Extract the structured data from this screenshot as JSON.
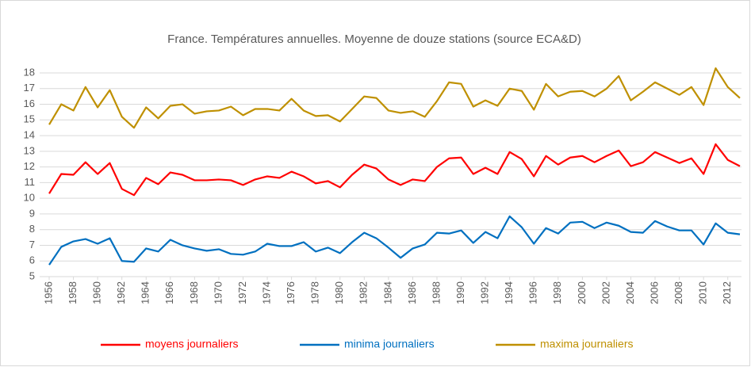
{
  "chart_data": {
    "type": "line",
    "title": "France. Températures annuelles. Moyenne de douze stations (source ECA&D)",
    "x": [
      1956,
      1957,
      1958,
      1959,
      1960,
      1961,
      1962,
      1963,
      1964,
      1965,
      1966,
      1967,
      1968,
      1969,
      1970,
      1971,
      1972,
      1973,
      1974,
      1975,
      1976,
      1977,
      1978,
      1979,
      1980,
      1981,
      1982,
      1983,
      1984,
      1985,
      1986,
      1987,
      1988,
      1989,
      1990,
      1991,
      1992,
      1993,
      1994,
      1995,
      1996,
      1997,
      1998,
      1999,
      2000,
      2001,
      2002,
      2003,
      2004,
      2005,
      2006,
      2007,
      2008,
      2009,
      2010,
      2011,
      2012,
      2013
    ],
    "xlim": [
      1956,
      2013
    ],
    "xticks": [
      1956,
      1958,
      1960,
      1962,
      1964,
      1966,
      1968,
      1970,
      1972,
      1974,
      1976,
      1978,
      1980,
      1982,
      1984,
      1986,
      1988,
      1990,
      1992,
      1994,
      1996,
      1998,
      2000,
      2002,
      2004,
      2006,
      2008,
      2010,
      2012
    ],
    "ylim": [
      5,
      18
    ],
    "yticks": [
      5,
      6,
      7,
      8,
      9,
      10,
      11,
      12,
      13,
      14,
      15,
      16,
      17,
      18
    ],
    "grid": true,
    "legend": "bottom",
    "series": [
      {
        "name": "moyens journaliers",
        "color": "#ff0000",
        "values": [
          10.3,
          11.55,
          11.5,
          12.3,
          11.55,
          12.25,
          10.6,
          10.2,
          11.3,
          10.9,
          11.65,
          11.5,
          11.15,
          11.15,
          11.2,
          11.15,
          10.85,
          11.2,
          11.4,
          11.3,
          11.7,
          11.4,
          10.95,
          11.1,
          10.7,
          11.5,
          12.15,
          11.9,
          11.2,
          10.85,
          11.2,
          11.1,
          12.0,
          12.55,
          12.6,
          11.55,
          11.95,
          11.55,
          12.95,
          12.5,
          11.4,
          12.7,
          12.15,
          12.6,
          12.7,
          12.3,
          12.7,
          13.05,
          12.05,
          12.3,
          12.95,
          12.6,
          12.25,
          12.55,
          11.55,
          13.45,
          12.45,
          12.05
        ]
      },
      {
        "name": "minima journaliers",
        "color": "#0070c0",
        "values": [
          5.75,
          6.9,
          7.25,
          7.4,
          7.1,
          7.45,
          6.0,
          5.95,
          6.8,
          6.6,
          7.35,
          7.0,
          6.8,
          6.65,
          6.75,
          6.45,
          6.4,
          6.6,
          7.1,
          6.95,
          6.95,
          7.2,
          6.6,
          6.85,
          6.5,
          7.2,
          7.8,
          7.45,
          6.85,
          6.2,
          6.8,
          7.05,
          7.8,
          7.75,
          7.95,
          7.15,
          7.85,
          7.45,
          8.85,
          8.15,
          7.1,
          8.1,
          7.75,
          8.45,
          8.5,
          8.1,
          8.45,
          8.25,
          7.85,
          7.8,
          8.55,
          8.2,
          7.95,
          7.95,
          7.05,
          8.4,
          7.8,
          7.7
        ]
      },
      {
        "name": "maxima journaliers",
        "color": "#bf9000",
        "values": [
          14.7,
          16.0,
          15.6,
          17.1,
          15.8,
          16.9,
          15.2,
          14.5,
          15.8,
          15.1,
          15.9,
          16.0,
          15.4,
          15.55,
          15.6,
          15.85,
          15.3,
          15.7,
          15.7,
          15.6,
          16.35,
          15.6,
          15.25,
          15.3,
          14.9,
          15.7,
          16.5,
          16.4,
          15.6,
          15.45,
          15.55,
          15.2,
          16.2,
          17.4,
          17.3,
          15.85,
          16.25,
          15.9,
          17.0,
          16.85,
          15.65,
          17.3,
          16.5,
          16.8,
          16.85,
          16.5,
          17.0,
          17.8,
          16.25,
          16.8,
          17.4,
          17.0,
          16.6,
          17.1,
          15.95,
          18.3,
          17.1,
          16.4
        ]
      }
    ]
  }
}
